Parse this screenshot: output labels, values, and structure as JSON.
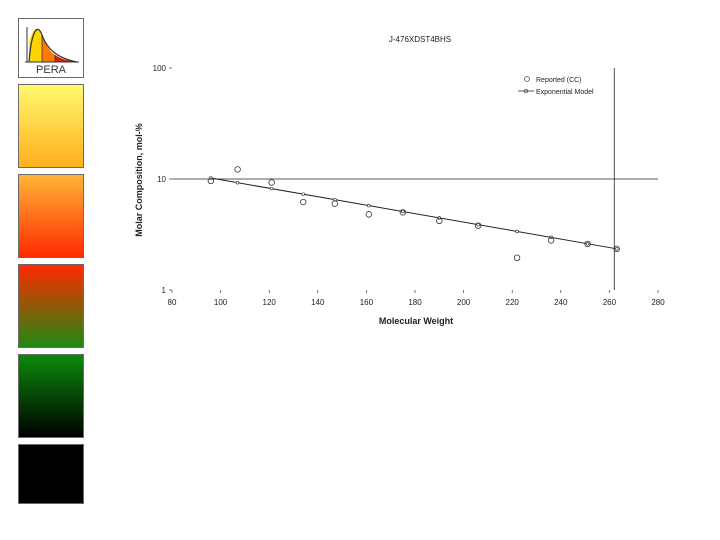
{
  "logo": {
    "text": "PERA"
  },
  "chart_data": {
    "type": "scatter",
    "title": "J-476XDST4BHS",
    "xlabel": "Molecular Weight",
    "ylabel": "Molar Composition, mol-%",
    "xlim": [
      80,
      280
    ],
    "ylim": [
      1,
      100
    ],
    "yscale": "log",
    "xticks": [
      "80",
      "100",
      "120",
      "140",
      "160",
      "180",
      "200",
      "220",
      "240",
      "260",
      "280"
    ],
    "yticks": [
      "1",
      "10",
      "100"
    ],
    "legend_position": "top-right",
    "series": [
      {
        "name": "Reported (CC)",
        "style": "open-circle",
        "x": [
          96,
          107,
          121,
          134,
          147,
          161,
          175,
          190,
          206,
          222,
          236,
          251,
          263
        ],
        "y": [
          9.6,
          12.2,
          9.3,
          6.2,
          6.0,
          4.8,
          5.0,
          4.2,
          3.8,
          1.95,
          2.8,
          2.6,
          2.35
        ]
      },
      {
        "name": "Exponential Model",
        "style": "line",
        "x": [
          96,
          263
        ],
        "y": [
          10.2,
          2.35
        ]
      }
    ],
    "reference_lines": {
      "vertical_x": 262,
      "horizontal_y": 10
    }
  }
}
